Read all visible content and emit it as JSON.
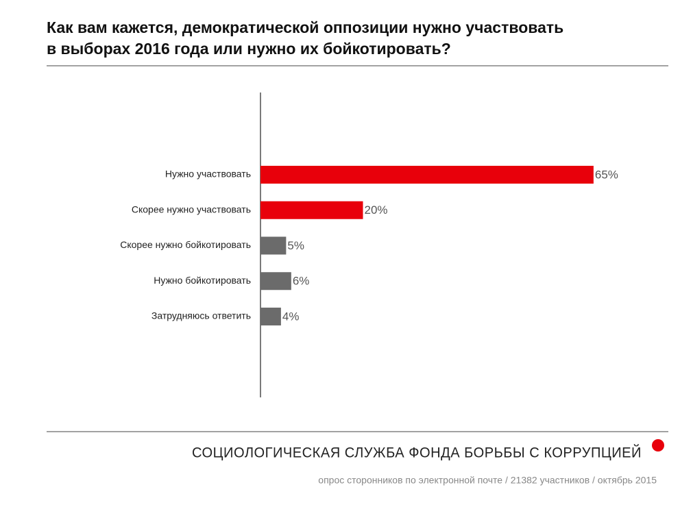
{
  "chart_data": {
    "type": "hbar",
    "title": [
      "Как вам кажется, демократической оппозиции нужно участвовать",
      "в выборах 2016 года или нужно их бойкотировать?"
    ],
    "categories": [
      "Нужно участвовать",
      "Скорее нужно участвовать",
      "Скорее нужно бойкотировать",
      "Нужно бойкотировать",
      "Затрудняюсь ответить"
    ],
    "values": [
      65,
      20,
      5,
      6,
      4
    ],
    "value_labels": [
      "65%",
      "20%",
      "5%",
      "6%",
      "4%"
    ],
    "colors": [
      "#e8000b",
      "#e8000b",
      "#6b6b6b",
      "#6b6b6b",
      "#6b6b6b"
    ],
    "xlim": [
      0,
      80
    ],
    "publisher": "СОЦИОЛОГИЧЕСКАЯ СЛУЖБА ФОНДА БОРЬБЫ С КОРРУПЦИЕЙ",
    "source": "опрос сторонников по электронной почте / 21382 участников / октябрь 2015"
  }
}
